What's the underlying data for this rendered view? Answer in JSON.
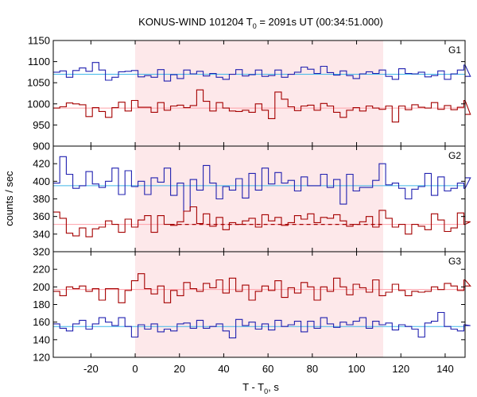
{
  "chart_data": {
    "type": "line",
    "title_main": "KONUS-WIND 101204 T",
    "title_sub": "0",
    "title_rest": " = 2091s UT (00:34:51.000)",
    "xlabel_main": "T - T",
    "xlabel_sub": "0",
    "xlabel_rest": ", s",
    "ylabel": "counts / sec",
    "xlim": [
      -37,
      149
    ],
    "x_ticks": [
      -20,
      0,
      20,
      40,
      60,
      80,
      100,
      120,
      140
    ],
    "shaded_interval": [
      0,
      112
    ],
    "bin_width": 2.944,
    "colors": {
      "red_series": "#a50000",
      "blue_series": "#2020b0",
      "red_background": "#ffa0a8",
      "blue_background": "#40b8e8",
      "shade": "#fde8ea"
    },
    "panels": [
      {
        "label": "G1",
        "ylim": [
          900,
          1150
        ],
        "y_ticks": [
          900,
          950,
          1000,
          1050,
          1100,
          1150
        ],
        "blue_background_level": 1070,
        "red_background_level": 990,
        "blue_values": [
          1075,
          1078,
          1063,
          1079,
          1085,
          1077,
          1098,
          1080,
          1056,
          1063,
          1076,
          1077,
          1079,
          1064,
          1067,
          1063,
          1081,
          1054,
          1069,
          1060,
          1080,
          1071,
          1077,
          1066,
          1072,
          1063,
          1058,
          1070,
          1081,
          1066,
          1069,
          1080,
          1065,
          1067,
          1080,
          1063,
          1070,
          1075,
          1087,
          1082,
          1072,
          1089,
          1074,
          1068,
          1078,
          1067,
          1060,
          1071,
          1076,
          1072,
          1080,
          1065,
          1058,
          1083,
          1072,
          1071,
          1075,
          1064,
          1067,
          1078,
          1058,
          1071,
          1080,
          1092,
          1065
        ],
        "red_values": [
          990,
          993,
          1002,
          1000,
          998,
          970,
          991,
          982,
          968,
          991,
          1004,
          983,
          1008,
          992,
          992,
          980,
          1003,
          985,
          995,
          997,
          991,
          996,
          1033,
          1006,
          983,
          1003,
          990,
          983,
          982,
          985,
          980,
          1000,
          985,
          965,
          1028,
          1011,
          993,
          984,
          995,
          997,
          985,
          1001,
          995,
          980,
          968,
          985,
          991,
          983,
          995,
          990,
          987,
          995,
          957,
          995,
          986,
          998,
          992,
          990,
          1003,
          987,
          996,
          986,
          992,
          1008,
          975
        ]
      },
      {
        "label": "G2",
        "ylim": [
          320,
          440
        ],
        "y_ticks": [
          320,
          340,
          360,
          380,
          400,
          420
        ],
        "blue_background_level": 395,
        "red_background_level": 351,
        "red_fit_dashed_interval": [
          16,
          112
        ],
        "blue_values": [
          398,
          428,
          408,
          392,
          395,
          411,
          397,
          393,
          400,
          415,
          385,
          412,
          394,
          400,
          385,
          404,
          399,
          415,
          384,
          398,
          366,
          402,
          390,
          418,
          398,
          380,
          394,
          390,
          403,
          381,
          409,
          390,
          415,
          397,
          410,
          398,
          401,
          389,
          405,
          395,
          395,
          408,
          393,
          402,
          374,
          408,
          389,
          393,
          393,
          401,
          420,
          396,
          398,
          392,
          380,
          391,
          394,
          409,
          384,
          405,
          389,
          392,
          398,
          392,
          404
        ],
        "red_values": [
          365,
          358,
          341,
          338,
          347,
          337,
          346,
          348,
          355,
          351,
          342,
          357,
          348,
          356,
          361,
          342,
          361,
          351,
          350,
          354,
          366,
          371,
          352,
          363,
          349,
          359,
          345,
          353,
          351,
          355,
          358,
          348,
          362,
          355,
          359,
          350,
          353,
          361,
          357,
          363,
          353,
          359,
          358,
          362,
          355,
          349,
          351,
          354,
          360,
          348,
          367,
          358,
          348,
          351,
          340,
          351,
          349,
          345,
          363,
          356,
          343,
          347,
          364,
          351,
          354
        ]
      },
      {
        "label": "G3",
        "ylim": [
          120,
          240
        ],
        "y_ticks": [
          120,
          140,
          160,
          180,
          200,
          220
        ],
        "blue_background_level": 155,
        "red_background_level": 197,
        "blue_values": [
          158,
          153,
          150,
          158,
          162,
          152,
          158,
          165,
          160,
          156,
          165,
          155,
          143,
          157,
          152,
          158,
          149,
          152,
          150,
          158,
          159,
          153,
          162,
          153,
          155,
          158,
          150,
          142,
          163,
          156,
          160,
          152,
          158,
          151,
          162,
          155,
          157,
          161,
          149,
          161,
          153,
          165,
          158,
          154,
          160,
          157,
          161,
          165,
          153,
          161,
          157,
          159,
          151,
          157,
          155,
          152,
          143,
          159,
          161,
          171,
          155,
          152,
          150,
          157,
          156
        ],
        "red_values": [
          195,
          190,
          200,
          198,
          201,
          195,
          198,
          185,
          198,
          198,
          182,
          196,
          207,
          215,
          198,
          192,
          201,
          182,
          196,
          190,
          205,
          198,
          195,
          204,
          199,
          208,
          193,
          210,
          195,
          202,
          185,
          195,
          201,
          196,
          207,
          188,
          199,
          193,
          205,
          200,
          185,
          200,
          195,
          210,
          200,
          191,
          203,
          199,
          194,
          208,
          190,
          194,
          203,
          196,
          190,
          195,
          194,
          195,
          200,
          197,
          204,
          201,
          196,
          208,
          201
        ]
      }
    ]
  }
}
